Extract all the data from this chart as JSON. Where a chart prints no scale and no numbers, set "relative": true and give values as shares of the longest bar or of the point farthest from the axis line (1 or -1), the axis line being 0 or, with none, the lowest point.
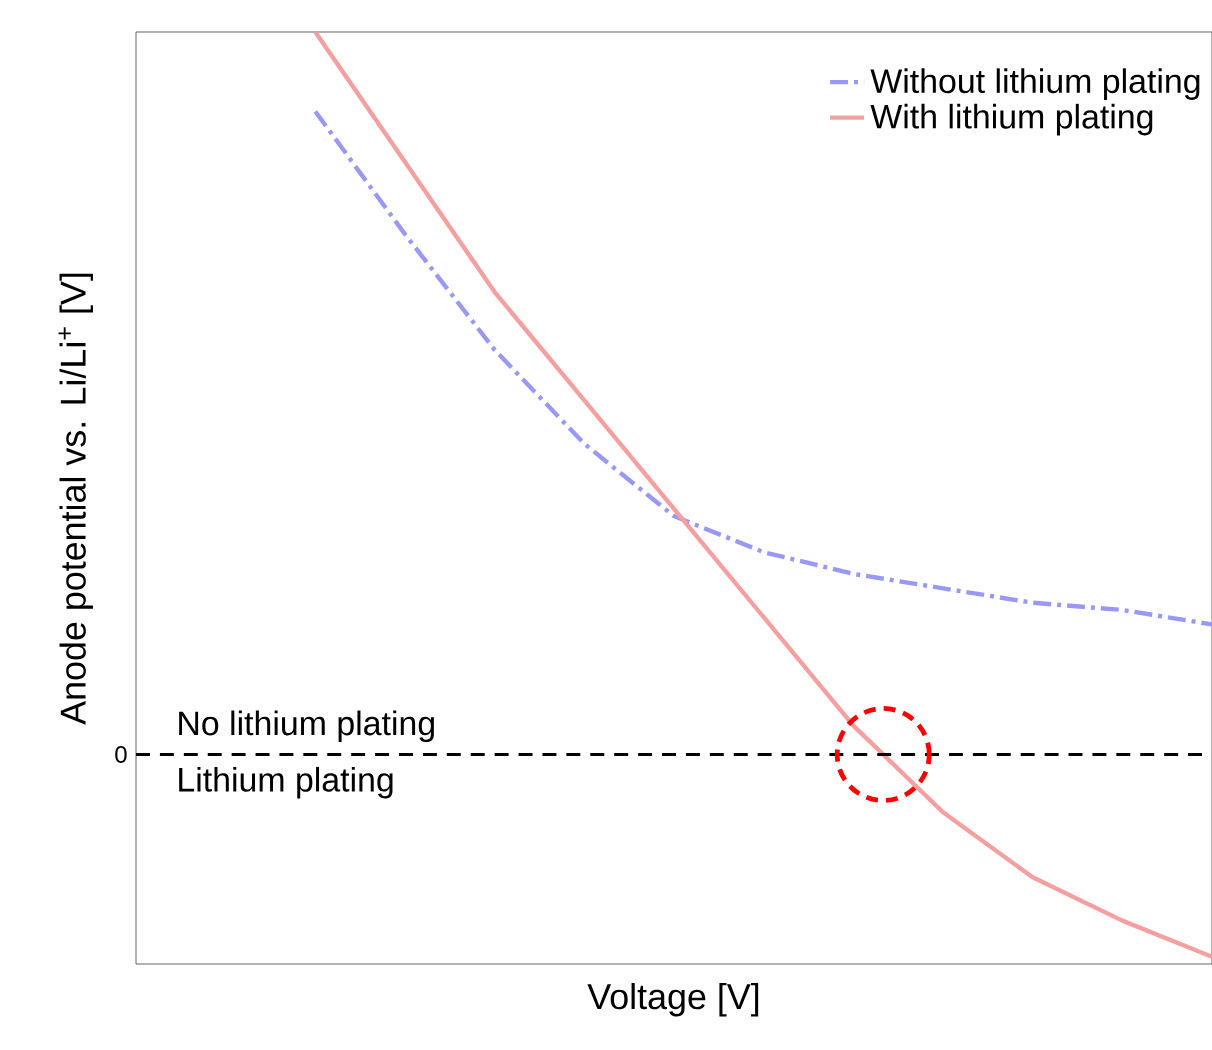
{
  "chart_data": {
    "type": "line",
    "relative": true,
    "xlabel": "Voltage [V]",
    "ylabel": "Anode potential vs. Li/Li$^{+}$ [V]",
    "categories": [
      null,
      null,
      null,
      null,
      null,
      null,
      null,
      null,
      null,
      null,
      null,
      null,
      null
    ],
    "series": [
      {
        "name": "Without lithium plating",
        "color": "#9999f5",
        "line_style": "dashdot",
        "values": [
          null,
          null,
          0.89,
          0.72,
          0.56,
          0.43,
          0.33,
          0.28,
          0.25,
          0.23,
          0.21,
          0.2,
          0.18
        ]
      },
      {
        "name": "With lithium plating",
        "color": "#f5a0a0",
        "line_style": "solid",
        "values": [
          null,
          null,
          1.0,
          0.82,
          0.64,
          0.49,
          0.34,
          0.19,
          0.04,
          -0.08,
          -0.17,
          -0.23,
          -0.28
        ]
      }
    ],
    "ref_lines": [
      {
        "axis": "y",
        "value": 0,
        "label": "0",
        "color": "#000000",
        "line_style": "dashed"
      }
    ],
    "annotations": [
      "No lithium plating",
      "Lithium plating"
    ],
    "legend": "top right",
    "marker": "none"
  }
}
